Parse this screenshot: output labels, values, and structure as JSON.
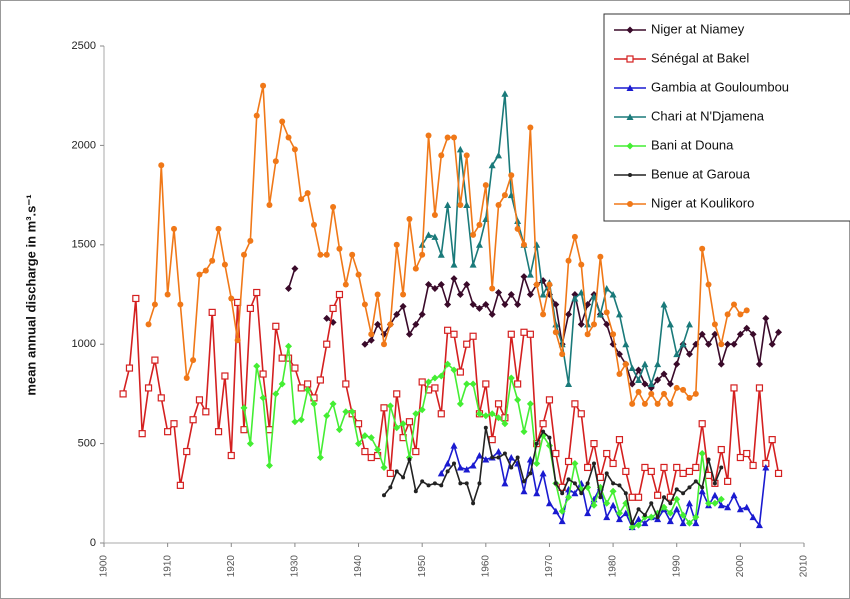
{
  "chart_data": {
    "type": "line",
    "y_label": "mean annual discharge in m³.s⁻¹",
    "xlim": [
      1900,
      2010
    ],
    "xticks": [
      1900,
      1910,
      1920,
      1930,
      1940,
      1950,
      1960,
      1970,
      1980,
      1990,
      2000,
      2010
    ],
    "ylim": [
      0,
      2500
    ],
    "yticks": [
      0,
      500,
      1000,
      1500,
      2000,
      2500
    ],
    "legend": "top-right",
    "series": [
      {
        "name": "Niger at Niamey",
        "color": "#3a0a2a",
        "marker": "diamond",
        "x": [
          1929,
          1930,
          1931,
          1935,
          1936,
          1937,
          1941,
          1942,
          1943,
          1944,
          1945,
          1946,
          1947,
          1948,
          1949,
          1950,
          1951,
          1952,
          1953,
          1954,
          1955,
          1956,
          1957,
          1958,
          1959,
          1960,
          1961,
          1962,
          1963,
          1964,
          1965,
          1966,
          1967,
          1968,
          1969,
          1970,
          1971,
          1972,
          1973,
          1974,
          1975,
          1976,
          1977,
          1978,
          1979,
          1980,
          1981,
          1982,
          1983,
          1984,
          1985,
          1986,
          1987,
          1988,
          1989,
          1990,
          1991,
          1992,
          1993,
          1994,
          1995,
          1996,
          1997,
          1998,
          1999,
          2000,
          2001,
          2002,
          2003,
          2004,
          2005,
          2006
        ],
        "values": [
          1280,
          1380,
          null,
          1130,
          1110,
          null,
          1000,
          1020,
          1100,
          1050,
          1100,
          1150,
          1190,
          1050,
          1100,
          1150,
          1300,
          1280,
          1300,
          1200,
          1330,
          1250,
          1300,
          1200,
          1180,
          1200,
          1150,
          1260,
          1200,
          1250,
          1200,
          1340,
          1250,
          1300,
          1320,
          1250,
          1200,
          1000,
          1150,
          1250,
          1100,
          1200,
          1250,
          1150,
          1100,
          1000,
          950,
          900,
          800,
          870,
          800,
          780,
          820,
          850,
          800,
          900,
          1000,
          950,
          1000,
          1050,
          1000,
          1050,
          900,
          1000,
          1000,
          1050,
          1080,
          1050,
          900,
          1130,
          1000,
          1060
        ]
      },
      {
        "name": "Sénégal at Bakel",
        "color": "#d42020",
        "marker": "square-open",
        "x": [
          1903,
          1904,
          1905,
          1906,
          1907,
          1908,
          1909,
          1910,
          1911,
          1912,
          1913,
          1914,
          1915,
          1916,
          1917,
          1918,
          1919,
          1920,
          1921,
          1922,
          1923,
          1924,
          1925,
          1926,
          1927,
          1928,
          1929,
          1930,
          1931,
          1932,
          1933,
          1934,
          1935,
          1936,
          1937,
          1938,
          1939,
          1940,
          1941,
          1942,
          1943,
          1944,
          1945,
          1946,
          1947,
          1948,
          1949,
          1950,
          1951,
          1952,
          1953,
          1954,
          1955,
          1956,
          1957,
          1958,
          1959,
          1960,
          1961,
          1962,
          1963,
          1964,
          1965,
          1966,
          1967,
          1968,
          1969,
          1970,
          1971,
          1972,
          1973,
          1974,
          1975,
          1976,
          1977,
          1978,
          1979,
          1980,
          1981,
          1982,
          1983,
          1984,
          1985,
          1986,
          1987,
          1988,
          1989,
          1990,
          1991,
          1992,
          1993,
          1994,
          1995,
          1996,
          1997,
          1998,
          1999,
          2000,
          2001,
          2002,
          2003,
          2004,
          2005,
          2006
        ],
        "values": [
          750,
          880,
          1230,
          550,
          780,
          920,
          730,
          560,
          600,
          290,
          460,
          620,
          720,
          660,
          1160,
          560,
          840,
          440,
          1210,
          570,
          1180,
          1260,
          850,
          570,
          1090,
          930,
          930,
          880,
          780,
          800,
          730,
          820,
          1000,
          1180,
          1250,
          800,
          650,
          600,
          460,
          430,
          440,
          680,
          350,
          750,
          530,
          610,
          460,
          810,
          770,
          780,
          650,
          1070,
          1050,
          860,
          1000,
          1040,
          650,
          800,
          520,
          700,
          630,
          1050,
          800,
          1060,
          1050,
          500,
          600,
          720,
          450,
          280,
          410,
          700,
          650,
          380,
          500,
          330,
          450,
          400,
          520,
          360,
          230,
          230,
          380,
          360,
          240,
          380,
          230,
          380,
          350,
          360,
          380,
          600,
          340,
          300,
          470,
          310,
          780,
          430,
          450,
          390,
          780,
          400,
          520,
          350
        ]
      },
      {
        "name": "Gambia at Gouloumbou",
        "color": "#1a1ad0",
        "marker": "triangle",
        "x": [
          1953,
          1954,
          1955,
          1956,
          1957,
          1958,
          1959,
          1960,
          1961,
          1962,
          1963,
          1964,
          1965,
          1966,
          1967,
          1968,
          1969,
          1970,
          1971,
          1972,
          1973,
          1974,
          1975,
          1976,
          1977,
          1978,
          1979,
          1980,
          1981,
          1982,
          1983,
          1984,
          1985,
          1986,
          1987,
          1988,
          1989,
          1990,
          1991,
          1992,
          1993,
          1994,
          1995,
          1996,
          1997,
          1998,
          1999,
          2000,
          2001,
          2002,
          2003,
          2004
        ],
        "values": [
          350,
          400,
          490,
          380,
          370,
          390,
          440,
          420,
          430,
          460,
          300,
          430,
          400,
          260,
          420,
          250,
          350,
          200,
          160,
          110,
          270,
          250,
          300,
          150,
          220,
          280,
          130,
          190,
          120,
          150,
          80,
          120,
          100,
          130,
          120,
          170,
          110,
          170,
          100,
          200,
          100,
          260,
          190,
          240,
          190,
          180,
          240,
          170,
          180,
          130,
          90,
          380
        ]
      },
      {
        "name": "Chari at N'Djamena",
        "color": "#1a7a7a",
        "marker": "triangle",
        "x": [
          1950,
          1951,
          1952,
          1953,
          1954,
          1955,
          1956,
          1957,
          1958,
          1959,
          1960,
          1961,
          1962,
          1963,
          1964,
          1965,
          1966,
          1967,
          1968,
          1969,
          1970,
          1971,
          1972,
          1973,
          1974,
          1975,
          1976,
          1977,
          1978,
          1979,
          1980,
          1981,
          1982,
          1983,
          1984,
          1985,
          1986,
          1987,
          1988,
          1989,
          1990,
          1991,
          1992
        ],
        "values": [
          1500,
          1550,
          1540,
          1450,
          1700,
          1400,
          1980,
          1700,
          1400,
          1500,
          1630,
          1900,
          1950,
          2260,
          1750,
          1620,
          1500,
          1350,
          1500,
          1250,
          1310,
          1100,
          1000,
          800,
          1230,
          1260,
          1100,
          1240,
          1150,
          1280,
          1250,
          1150,
          1000,
          880,
          820,
          900,
          800,
          900,
          1200,
          1100,
          950,
          1000,
          1100
        ]
      },
      {
        "name": "Bani at Douna",
        "color": "#44ee33",
        "marker": "diamond",
        "x": [
          1922,
          1923,
          1924,
          1925,
          1926,
          1927,
          1928,
          1929,
          1930,
          1931,
          1932,
          1933,
          1934,
          1935,
          1936,
          1937,
          1938,
          1939,
          1940,
          1941,
          1942,
          1943,
          1944,
          1945,
          1946,
          1947,
          1948,
          1949,
          1950,
          1951,
          1952,
          1953,
          1954,
          1955,
          1956,
          1957,
          1958,
          1959,
          1960,
          1961,
          1962,
          1963,
          1964,
          1965,
          1966,
          1967,
          1968,
          1969,
          1970,
          1971,
          1972,
          1973,
          1974,
          1975,
          1976,
          1977,
          1978,
          1979,
          1980,
          1981,
          1982,
          1983,
          1984,
          1985,
          1986,
          1987,
          1988,
          1989,
          1990,
          1991,
          1992,
          1993,
          1994,
          1995,
          1996,
          1997
        ],
        "values": [
          680,
          500,
          890,
          730,
          390,
          750,
          800,
          990,
          610,
          620,
          770,
          700,
          430,
          640,
          700,
          570,
          660,
          660,
          500,
          540,
          530,
          470,
          380,
          690,
          580,
          600,
          430,
          650,
          670,
          810,
          830,
          840,
          900,
          870,
          700,
          800,
          800,
          650,
          640,
          650,
          630,
          600,
          830,
          720,
          560,
          700,
          400,
          540,
          490,
          300,
          160,
          230,
          400,
          270,
          280,
          190,
          280,
          200,
          260,
          150,
          200,
          80,
          90,
          130,
          130,
          150,
          180,
          150,
          220,
          140,
          100,
          130,
          450,
          200,
          200,
          220
        ]
      },
      {
        "name": "Benue at Garoua",
        "color": "#222222",
        "marker": "dot",
        "x": [
          1944,
          1945,
          1946,
          1947,
          1948,
          1949,
          1950,
          1951,
          1952,
          1953,
          1954,
          1955,
          1956,
          1957,
          1958,
          1959,
          1960,
          1961,
          1962,
          1963,
          1964,
          1965,
          1966,
          1967,
          1968,
          1969,
          1970,
          1971,
          1972,
          1973,
          1974,
          1975,
          1976,
          1977,
          1978,
          1979,
          1980,
          1981,
          1982,
          1983,
          1984,
          1985,
          1986,
          1987,
          1988,
          1989,
          1990,
          1991,
          1992,
          1993,
          1994,
          1995,
          1996,
          1997
        ],
        "values": [
          240,
          280,
          360,
          330,
          420,
          260,
          310,
          290,
          300,
          290,
          360,
          400,
          300,
          300,
          200,
          300,
          580,
          430,
          430,
          450,
          380,
          430,
          310,
          350,
          500,
          560,
          530,
          300,
          250,
          320,
          300,
          250,
          300,
          400,
          230,
          350,
          300,
          290,
          250,
          100,
          170,
          140,
          200,
          130,
          230,
          200,
          270,
          250,
          280,
          310,
          280,
          420,
          300,
          380
        ]
      },
      {
        "name": "Niger at Koulikoro",
        "color": "#f07818",
        "marker": "circle",
        "x": [
          1907,
          1908,
          1909,
          1910,
          1911,
          1912,
          1913,
          1914,
          1915,
          1916,
          1917,
          1918,
          1919,
          1920,
          1921,
          1922,
          1923,
          1924,
          1925,
          1926,
          1927,
          1928,
          1929,
          1930,
          1931,
          1932,
          1933,
          1934,
          1935,
          1936,
          1937,
          1938,
          1939,
          1940,
          1941,
          1942,
          1943,
          1944,
          1945,
          1946,
          1947,
          1948,
          1949,
          1950,
          1951,
          1952,
          1953,
          1954,
          1955,
          1956,
          1957,
          1958,
          1959,
          1960,
          1961,
          1962,
          1963,
          1964,
          1965,
          1966,
          1967,
          1968,
          1969,
          1970,
          1971,
          1972,
          1973,
          1974,
          1975,
          1976,
          1977,
          1978,
          1979,
          1980,
          1981,
          1982,
          1983,
          1984,
          1985,
          1986,
          1987,
          1988,
          1989,
          1990,
          1991,
          1992,
          1993,
          1994,
          1995,
          1996,
          1997,
          1998,
          1999,
          2000,
          2001
        ],
        "values": [
          1100,
          1200,
          1900,
          1250,
          1580,
          1200,
          830,
          920,
          1350,
          1370,
          1420,
          1580,
          1400,
          1230,
          1020,
          1450,
          1520,
          2150,
          2300,
          1700,
          1920,
          2120,
          2040,
          1980,
          1730,
          1760,
          1600,
          1450,
          1450,
          1690,
          1480,
          1300,
          1450,
          1350,
          1200,
          1050,
          1250,
          1000,
          1100,
          1500,
          1250,
          1630,
          1380,
          1450,
          2050,
          1650,
          1950,
          2040,
          2040,
          1700,
          1950,
          1550,
          1600,
          1800,
          1280,
          1700,
          1750,
          1850,
          1580,
          1500,
          2090,
          1300,
          1150,
          1300,
          1060,
          950,
          1420,
          1540,
          1400,
          1050,
          1100,
          1440,
          1160,
          1050,
          850,
          900,
          700,
          760,
          700,
          750,
          700,
          750,
          700,
          780,
          770,
          730,
          750,
          1480,
          1300,
          1100,
          1000,
          1150,
          1200,
          1150,
          1170
        ]
      }
    ]
  }
}
